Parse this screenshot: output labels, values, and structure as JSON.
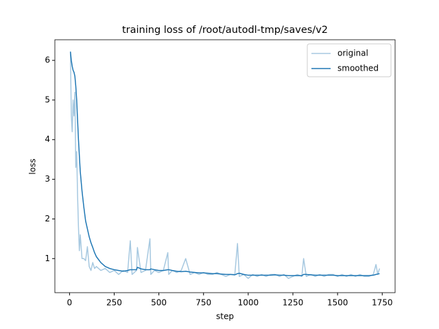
{
  "chart_data": {
    "type": "line",
    "title": "training loss of /root/autodl-tmp/saves/v2",
    "xlabel": "step",
    "ylabel": "loss",
    "x": [
      5,
      10,
      15,
      20,
      25,
      30,
      35,
      40,
      45,
      50,
      55,
      60,
      70,
      80,
      90,
      100,
      110,
      120,
      130,
      140,
      150,
      175,
      200,
      225,
      250,
      275,
      300,
      325,
      340,
      350,
      375,
      380,
      400,
      425,
      450,
      455,
      475,
      500,
      525,
      550,
      555,
      575,
      600,
      625,
      650,
      675,
      700,
      725,
      750,
      775,
      800,
      825,
      850,
      875,
      900,
      925,
      940,
      950,
      975,
      1000,
      1025,
      1050,
      1075,
      1100,
      1125,
      1150,
      1175,
      1200,
      1225,
      1250,
      1275,
      1300,
      1310,
      1325,
      1350,
      1375,
      1400,
      1425,
      1450,
      1475,
      1500,
      1525,
      1550,
      1575,
      1600,
      1625,
      1650,
      1675,
      1700,
      1715,
      1725,
      1735
    ],
    "series": [
      {
        "name": "original",
        "color": "#a6c8e0",
        "values": [
          6.2,
          4.6,
          4.2,
          5.0,
          4.6,
          5.2,
          3.3,
          3.7,
          2.6,
          1.8,
          1.2,
          1.6,
          1.0,
          1.0,
          0.95,
          1.3,
          0.8,
          0.7,
          0.9,
          0.75,
          0.8,
          0.7,
          0.75,
          0.65,
          0.7,
          0.6,
          0.7,
          0.65,
          1.45,
          0.6,
          0.7,
          1.28,
          0.65,
          0.7,
          1.5,
          0.6,
          0.7,
          0.65,
          0.7,
          1.15,
          0.6,
          0.7,
          0.65,
          0.7,
          1.0,
          0.6,
          0.65,
          0.6,
          0.65,
          0.6,
          0.6,
          0.65,
          0.6,
          0.55,
          0.6,
          0.6,
          1.38,
          0.55,
          0.6,
          0.5,
          0.6,
          0.55,
          0.6,
          0.55,
          0.6,
          0.6,
          0.55,
          0.6,
          0.5,
          0.55,
          0.6,
          0.55,
          1.0,
          0.55,
          0.6,
          0.55,
          0.6,
          0.55,
          0.6,
          0.6,
          0.55,
          0.6,
          0.55,
          0.6,
          0.55,
          0.6,
          0.55,
          0.55,
          0.6,
          0.85,
          0.6,
          0.75
        ]
      },
      {
        "name": "smoothed",
        "color": "#1f77b4",
        "values": [
          6.22,
          6.0,
          5.85,
          5.75,
          5.7,
          5.6,
          5.35,
          5.0,
          4.5,
          4.0,
          3.6,
          3.2,
          2.7,
          2.3,
          1.95,
          1.75,
          1.55,
          1.4,
          1.28,
          1.15,
          1.05,
          0.9,
          0.8,
          0.75,
          0.72,
          0.7,
          0.68,
          0.7,
          0.72,
          0.72,
          0.72,
          0.78,
          0.74,
          0.72,
          0.72,
          0.74,
          0.72,
          0.7,
          0.7,
          0.72,
          0.72,
          0.7,
          0.68,
          0.67,
          0.68,
          0.66,
          0.65,
          0.64,
          0.64,
          0.63,
          0.62,
          0.62,
          0.61,
          0.6,
          0.6,
          0.59,
          0.62,
          0.63,
          0.6,
          0.58,
          0.58,
          0.58,
          0.58,
          0.58,
          0.58,
          0.59,
          0.58,
          0.58,
          0.57,
          0.57,
          0.57,
          0.57,
          0.6,
          0.6,
          0.59,
          0.58,
          0.58,
          0.58,
          0.58,
          0.58,
          0.57,
          0.57,
          0.57,
          0.57,
          0.57,
          0.57,
          0.57,
          0.57,
          0.58,
          0.6,
          0.61,
          0.62
        ]
      }
    ],
    "xlim": [
      -82,
      1822
    ],
    "ylim": [
      0.14,
      6.52
    ],
    "xticks": [
      0,
      250,
      500,
      750,
      1000,
      1250,
      1500,
      1750
    ],
    "yticks": [
      1,
      2,
      3,
      4,
      5,
      6
    ],
    "legend": "upper right"
  }
}
